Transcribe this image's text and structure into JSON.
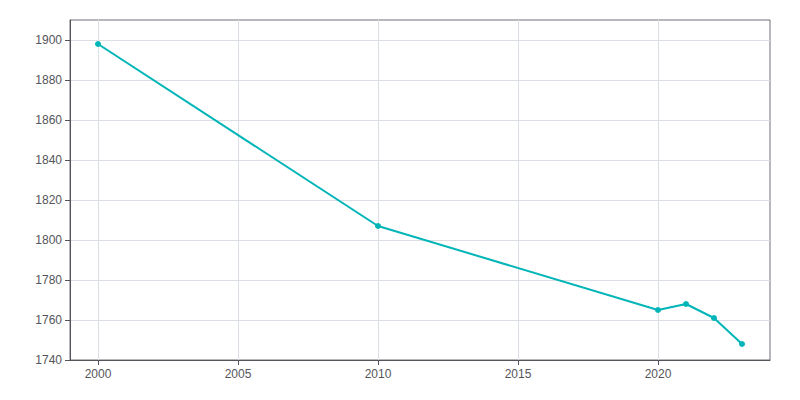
{
  "chart_data": {
    "type": "line",
    "x": [
      2000,
      2010,
      2020,
      2021,
      2022,
      2023
    ],
    "values": [
      1898,
      1807,
      1765,
      1768,
      1761,
      1748
    ],
    "color": "#00b5b8",
    "marker": "circle",
    "xlim": [
      1999,
      2024
    ],
    "xticks": [
      2000,
      2005,
      2010,
      2015,
      2020
    ],
    "ylim": [
      1740,
      1910
    ],
    "yticks": [
      1740,
      1760,
      1780,
      1800,
      1820,
      1840,
      1860,
      1880,
      1900
    ],
    "grid": true
  }
}
